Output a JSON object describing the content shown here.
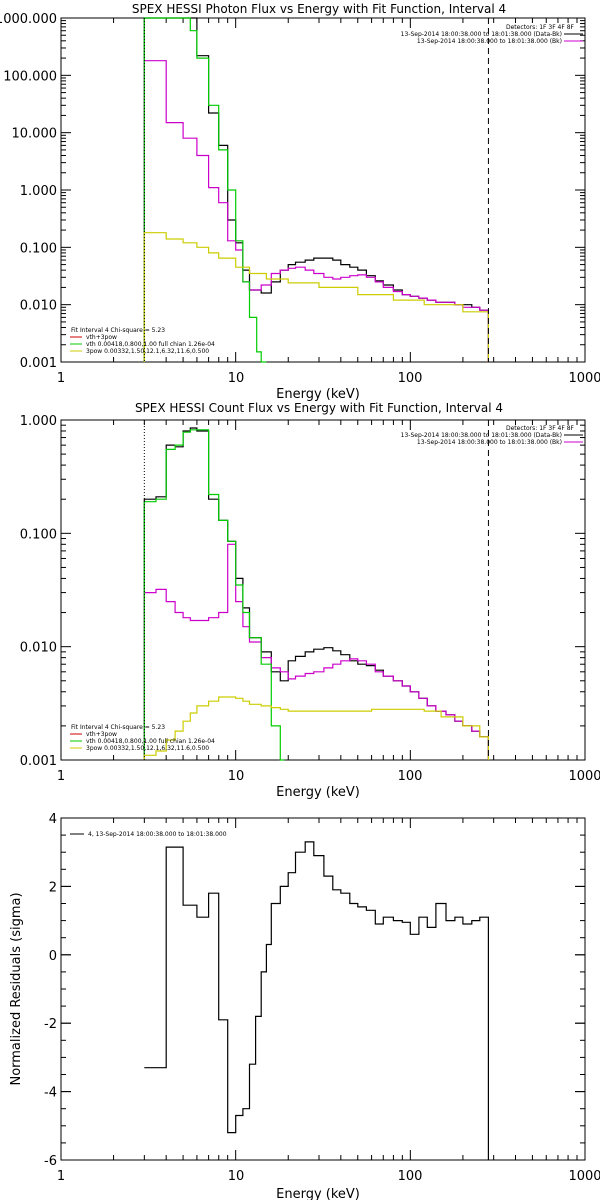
{
  "chart_data": [
    {
      "type": "line",
      "title": "SPEX HESSI Photon Flux vs Energy with Fit Function, Interval 4",
      "xlabel": "Energy (keV)",
      "ylabel": "",
      "xscale": "log",
      "yscale": "log",
      "xlim": [
        1,
        1000
      ],
      "ylim": [
        0.001,
        1000
      ],
      "xtick_labels": [
        "1",
        "10",
        "100",
        "1000"
      ],
      "ytick_values": [
        0.001,
        0.01,
        0.1,
        1,
        10,
        100,
        1000
      ],
      "ytick_labels": [
        "0.001",
        "0.010",
        "0.100",
        "1.000",
        "10.000",
        "100.000",
        "1000.000"
      ],
      "vlines": [
        {
          "x": 3.0,
          "style": "dotted",
          "color": "#000000"
        },
        {
          "x": 280,
          "style": "dashed",
          "color": "#000000"
        }
      ],
      "legend_header": {
        "lines": [
          "Detectors: 1F 3F 4F 8F",
          "13-Sep-2014 18:00:38.000 to 18:01:38.000 (Data-Bk)",
          "13-Sep-2014 18:00:38.000 to 18:01:38.000 (Bk)"
        ],
        "colors": [
          "",
          "#000000",
          "#cc00cc"
        ],
        "placement": "top-right"
      },
      "legend_fit": {
        "lines": [
          "Fit Interval  4    Chi-square = 5.23",
          "vth+3pow",
          "vth 0.00418,0.800,1.00  full chian 1.26e-04",
          "3pow 0.00332,1.50,12.1,6.32,11.6,0.500"
        ],
        "colors": [
          "",
          "#cc0000",
          "#00cc00",
          "#cccc00"
        ],
        "placement": "bottom-left"
      },
      "series": [
        {
          "color": "#000000",
          "x": [
            3,
            3.5,
            4,
            4.5,
            5,
            5.5,
            6,
            7,
            8,
            9,
            10,
            11,
            12,
            14,
            16,
            18,
            20,
            22,
            25,
            28,
            32,
            36,
            40,
            45,
            50,
            56,
            63,
            70,
            80,
            90,
            100,
            112,
            125,
            140,
            160,
            180,
            200,
            225,
            250,
            280
          ],
          "y": [
            1000,
            1000,
            1000,
            1000,
            1000,
            1000,
            220,
            22,
            6,
            0.3,
            0.12,
            0.04,
            0.018,
            0.016,
            0.025,
            0.04,
            0.05,
            0.055,
            0.06,
            0.065,
            0.065,
            0.06,
            0.05,
            0.045,
            0.04,
            0.032,
            0.026,
            0.022,
            0.018,
            0.015,
            0.014,
            0.013,
            0.012,
            0.011,
            0.011,
            0.01,
            0.01,
            0.009,
            0.008,
            0.008
          ]
        },
        {
          "color": "#cc00cc",
          "x": [
            3,
            3.5,
            4,
            4.5,
            5,
            5.5,
            6,
            7,
            8,
            9,
            10,
            11,
            12,
            14,
            16,
            18,
            20,
            22,
            25,
            28,
            32,
            36,
            40,
            45,
            50,
            56,
            63,
            70,
            80,
            90,
            100,
            112,
            125,
            140,
            160,
            180,
            200,
            225,
            250,
            280
          ],
          "y": [
            180,
            180,
            15,
            15,
            8,
            8,
            4,
            1.1,
            0.6,
            0.13,
            0.09,
            0.025,
            0.018,
            0.022,
            0.035,
            0.04,
            0.043,
            0.045,
            0.04,
            0.035,
            0.03,
            0.028,
            0.03,
            0.032,
            0.033,
            0.03,
            0.025,
            0.02,
            0.017,
            0.015,
            0.014,
            0.013,
            0.012,
            0.011,
            0.011,
            0.01,
            0.009,
            0.009,
            0.008,
            0.008
          ]
        },
        {
          "color": "#00cc00",
          "x": [
            3,
            3.5,
            4,
            4.5,
            5,
            5.5,
            6,
            7,
            8,
            9,
            10,
            11,
            12,
            13.2,
            14,
            15
          ],
          "y": [
            1000,
            1000,
            1000,
            1000,
            1000,
            600,
            200,
            30,
            5,
            1.0,
            0.13,
            0.025,
            0.006,
            0.0015,
            0.001,
            0.001
          ]
        },
        {
          "color": "#cccc00",
          "x": [
            3,
            4,
            5,
            6,
            7,
            8,
            10,
            12,
            15,
            20,
            30,
            50,
            80,
            120,
            200,
            280
          ],
          "y": [
            0.18,
            0.14,
            0.12,
            0.1,
            0.08,
            0.065,
            0.045,
            0.035,
            0.028,
            0.024,
            0.02,
            0.015,
            0.012,
            0.01,
            0.0075,
            0.006
          ]
        }
      ]
    },
    {
      "type": "line",
      "title": "SPEX HESSI Count Flux vs Energy with Fit Function, Interval 4",
      "xlabel": "Energy (keV)",
      "ylabel": "",
      "xscale": "log",
      "yscale": "log",
      "xlim": [
        1,
        1000
      ],
      "ylim": [
        0.001,
        1
      ],
      "xtick_labels": [
        "1",
        "10",
        "100",
        "1000"
      ],
      "ytick_values": [
        0.001,
        0.01,
        0.1,
        1
      ],
      "ytick_labels": [
        "0.001",
        "0.010",
        "0.100",
        "1.000"
      ],
      "vlines": [
        {
          "x": 3.0,
          "style": "dotted",
          "color": "#000000"
        },
        {
          "x": 280,
          "style": "dashed",
          "color": "#000000"
        }
      ],
      "legend_header": {
        "lines": [
          "Detectors: 1F 3F 4F 8F",
          "13-Sep-2014 18:00:38.000 to 18:01:38.000 (Data-Bk)",
          "13-Sep-2014 18:00:38.000 to 18:01:38.000 (Bk)"
        ],
        "colors": [
          "",
          "#000000",
          "#cc00cc"
        ],
        "placement": "top-right"
      },
      "legend_fit": {
        "lines": [
          "Fit Interval  4    Chi-square = 5.23",
          "vth+3pow",
          "vth 0.00418,0.800,1.00  full chian 1.26e-04",
          "3pow 0.00332,1.50,12.1,6.32,11.6,0.500"
        ],
        "colors": [
          "",
          "#cc0000",
          "#00cc00",
          "#cccc00"
        ],
        "placement": "bottom-left"
      },
      "series": [
        {
          "color": "#000000",
          "x": [
            3,
            3.5,
            4,
            4.5,
            5,
            5.5,
            6,
            7,
            8,
            9,
            10,
            11,
            12,
            14,
            16,
            18,
            20,
            22,
            25,
            28,
            32,
            36,
            40,
            45,
            50,
            56,
            63,
            70,
            80,
            90,
            100,
            112,
            125,
            140,
            160,
            180,
            200,
            225,
            250,
            280
          ],
          "y": [
            0.2,
            0.21,
            0.6,
            0.58,
            0.8,
            0.85,
            0.8,
            0.2,
            0.13,
            0.085,
            0.04,
            0.022,
            0.012,
            0.009,
            0.006,
            0.005,
            0.0075,
            0.0082,
            0.009,
            0.0095,
            0.0098,
            0.0092,
            0.0085,
            0.0075,
            0.007,
            0.0068,
            0.0062,
            0.0055,
            0.005,
            0.0045,
            0.004,
            0.0035,
            0.003,
            0.0027,
            0.0025,
            0.0022,
            0.002,
            0.0018,
            0.0016,
            0.0014
          ]
        },
        {
          "color": "#cc00cc",
          "x": [
            3,
            3.5,
            4,
            4.5,
            5,
            5.5,
            6,
            7,
            8,
            9,
            10,
            11,
            12,
            14,
            16,
            18,
            20,
            22,
            25,
            28,
            32,
            36,
            40,
            45,
            50,
            56,
            63,
            70,
            80,
            90,
            100,
            112,
            125,
            140,
            160,
            180,
            200,
            225,
            250,
            280
          ],
          "y": [
            0.03,
            0.032,
            0.025,
            0.02,
            0.018,
            0.017,
            0.017,
            0.018,
            0.02,
            0.08,
            0.025,
            0.015,
            0.011,
            0.008,
            0.0065,
            0.006,
            0.0052,
            0.0055,
            0.0058,
            0.006,
            0.0065,
            0.007,
            0.0075,
            0.0078,
            0.0075,
            0.007,
            0.006,
            0.0055,
            0.005,
            0.0045,
            0.004,
            0.0035,
            0.003,
            0.0027,
            0.0025,
            0.0022,
            0.002,
            0.0018,
            0.0016,
            0.0014
          ]
        },
        {
          "color": "#00cc00",
          "x": [
            3,
            3.5,
            4,
            4.5,
            5,
            5.5,
            6,
            7,
            8,
            9,
            10,
            11,
            12,
            14,
            16,
            18,
            19
          ],
          "y": [
            0.19,
            0.2,
            0.55,
            0.6,
            0.78,
            0.82,
            0.82,
            0.22,
            0.13,
            0.085,
            0.035,
            0.02,
            0.012,
            0.007,
            0.002,
            0.001,
            0.001
          ]
        },
        {
          "color": "#cccc00",
          "x": [
            3,
            3.5,
            4,
            4.5,
            5,
            5.5,
            6,
            7,
            8,
            9,
            10,
            11,
            12,
            14,
            16,
            18,
            20,
            25,
            30,
            40,
            60,
            80,
            100,
            120,
            150,
            200,
            250,
            280
          ],
          "y": [
            0.0011,
            0.0012,
            0.0015,
            0.0018,
            0.0022,
            0.0026,
            0.003,
            0.0033,
            0.0036,
            0.0036,
            0.0035,
            0.0033,
            0.0031,
            0.003,
            0.0029,
            0.0028,
            0.0027,
            0.0027,
            0.0027,
            0.0027,
            0.0028,
            0.0028,
            0.0028,
            0.0027,
            0.0024,
            0.002,
            0.0016,
            0.0014
          ]
        }
      ]
    },
    {
      "type": "line",
      "title": "",
      "xlabel": "Energy (keV)",
      "ylabel": "Normalized Residuals (sigma)",
      "xscale": "log",
      "yscale": "linear",
      "xlim": [
        1,
        1000
      ],
      "ylim": [
        -6,
        4
      ],
      "xtick_labels": [
        "1",
        "10",
        "100",
        "1000"
      ],
      "ytick_values": [
        -6,
        -4,
        -2,
        0,
        2,
        4
      ],
      "ytick_labels": [
        "-6",
        "-4",
        "-2",
        "0",
        "2",
        "4"
      ],
      "legend": {
        "text": "4, 13-Sep-2014 18:00:38.000 to 18:01:38.000",
        "color": "#000000",
        "placement": "top-left"
      },
      "series": [
        {
          "color": "#000000",
          "x": [
            3,
            3.5,
            4,
            4.5,
            5,
            5.5,
            6,
            7,
            8,
            9,
            10,
            11,
            12,
            13,
            14,
            15,
            16,
            18,
            20,
            22,
            25,
            28,
            32,
            36,
            40,
            45,
            50,
            56,
            63,
            70,
            80,
            90,
            100,
            112,
            125,
            140,
            160,
            180,
            200,
            225,
            250,
            280
          ],
          "y": [
            -3.3,
            -3.3,
            3.15,
            3.15,
            1.45,
            1.45,
            1.1,
            1.8,
            -1.9,
            -5.2,
            -4.7,
            -4.5,
            -3.2,
            -1.8,
            -0.5,
            0.3,
            1.5,
            2.0,
            2.4,
            3.0,
            3.3,
            2.9,
            2.3,
            1.9,
            1.8,
            1.5,
            1.4,
            1.3,
            0.9,
            1.1,
            1.0,
            0.95,
            0.6,
            1.1,
            0.8,
            1.5,
            1.0,
            1.1,
            0.9,
            1.0,
            1.1,
            1.1
          ]
        }
      ]
    }
  ]
}
